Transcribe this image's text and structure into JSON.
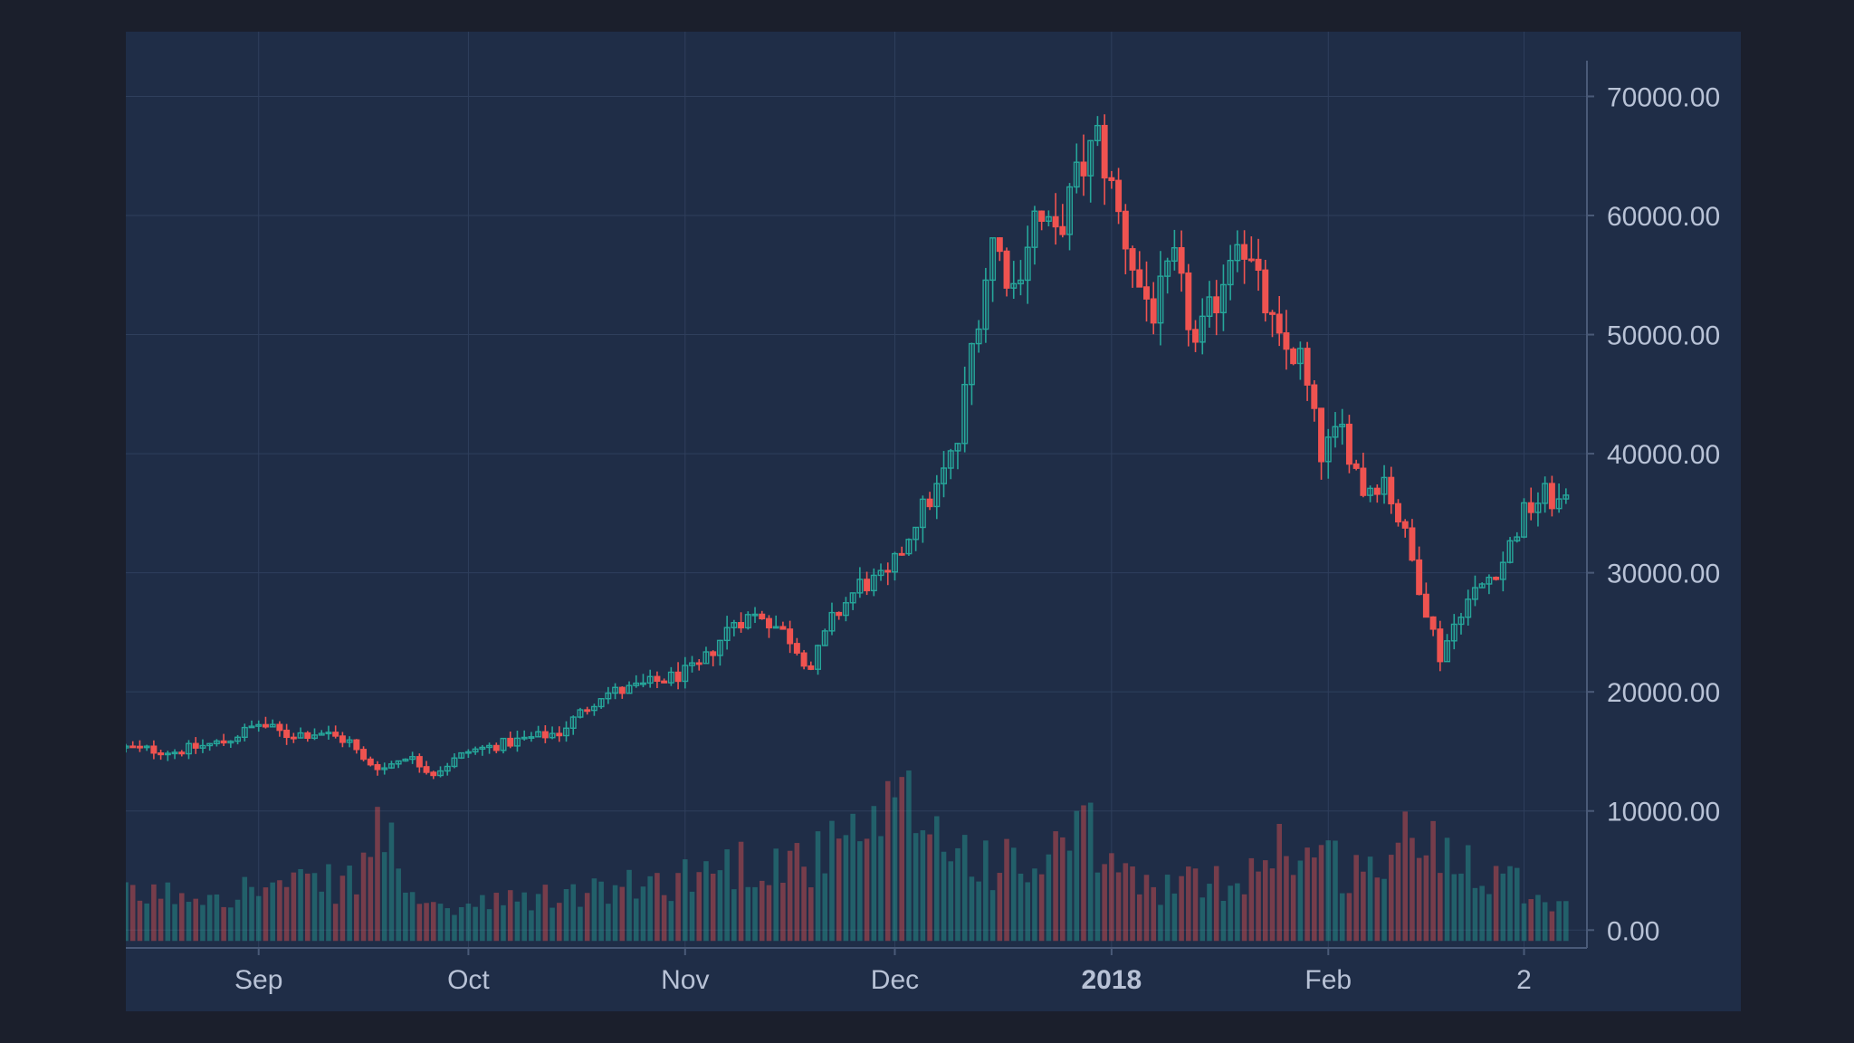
{
  "chart_data": {
    "type": "candlestick",
    "title": "",
    "xlabel": "",
    "ylabel": "",
    "ylim": [
      -1500,
      73000
    ],
    "y_ticks": [
      "70000.00",
      "60000.00",
      "50000.00",
      "40000.00",
      "30000.00",
      "20000.00",
      "10000.00",
      "0.00"
    ],
    "y_tick_values": [
      70000,
      60000,
      50000,
      40000,
      30000,
      20000,
      10000,
      0
    ],
    "x_ticks": [
      {
        "label": "Sep",
        "date": "2017-09-01",
        "bold": false
      },
      {
        "label": "Oct",
        "date": "2017-10-01",
        "bold": false
      },
      {
        "label": "Nov",
        "date": "2017-11-01",
        "bold": false
      },
      {
        "label": "Dec",
        "date": "2017-12-01",
        "bold": false
      },
      {
        "label": "2018",
        "date": "2018-01-01",
        "bold": true
      },
      {
        "label": "Feb",
        "date": "2018-02-01",
        "bold": false
      },
      {
        "label": "2",
        "date": "2018-03-01",
        "bold": false
      }
    ],
    "x_range": [
      "2017-08-13",
      "2018-03-10"
    ],
    "grid": true,
    "legend": "none",
    "colors": {
      "up": "#26a69a",
      "down": "#ef5350",
      "background": "#1f2d47",
      "grid": "#2f3f5c",
      "axis": "#4a5a78",
      "text": "#b8c2d6"
    },
    "close_path": [
      [
        "2017-08-13",
        15300
      ],
      [
        "2017-08-20",
        15000
      ],
      [
        "2017-08-27",
        15800
      ],
      [
        "2017-09-01",
        17300
      ],
      [
        "2017-09-05",
        16400
      ],
      [
        "2017-09-10",
        16600
      ],
      [
        "2017-09-14",
        15800
      ],
      [
        "2017-09-16",
        14200
      ],
      [
        "2017-09-19",
        13600
      ],
      [
        "2017-09-22",
        14700
      ],
      [
        "2017-09-26",
        13200
      ],
      [
        "2017-10-01",
        15000
      ],
      [
        "2017-10-08",
        15900
      ],
      [
        "2017-10-14",
        16600
      ],
      [
        "2017-10-20",
        19800
      ],
      [
        "2017-10-24",
        20200
      ],
      [
        "2017-10-30",
        21200
      ],
      [
        "2017-11-03",
        22000
      ],
      [
        "2017-11-08",
        26000
      ],
      [
        "2017-11-12",
        26500
      ],
      [
        "2017-11-16",
        24500
      ],
      [
        "2017-11-19",
        22000
      ],
      [
        "2017-11-22",
        26000
      ],
      [
        "2017-11-26",
        29000
      ],
      [
        "2017-11-30",
        29500
      ],
      [
        "2017-12-04",
        34500
      ],
      [
        "2017-12-07",
        37000
      ],
      [
        "2017-12-10",
        41000
      ],
      [
        "2017-12-12",
        49000
      ],
      [
        "2017-12-15",
        58000
      ],
      [
        "2017-12-18",
        54000
      ],
      [
        "2017-12-21",
        60000
      ],
      [
        "2017-12-24",
        58000
      ],
      [
        "2017-12-27",
        63000
      ],
      [
        "2017-12-30",
        66500
      ],
      [
        "2018-01-02",
        60000
      ],
      [
        "2018-01-05",
        54000
      ],
      [
        "2018-01-07",
        52000
      ],
      [
        "2018-01-10",
        56000
      ],
      [
        "2018-01-13",
        49000
      ],
      [
        "2018-01-16",
        53000
      ],
      [
        "2018-01-19",
        59000
      ],
      [
        "2018-01-22",
        54000
      ],
      [
        "2018-01-25",
        49000
      ],
      [
        "2018-01-28",
        48000
      ],
      [
        "2018-01-31",
        40000
      ],
      [
        "2018-02-03",
        42000
      ],
      [
        "2018-02-06",
        37000
      ],
      [
        "2018-02-09",
        38000
      ],
      [
        "2018-02-12",
        33000
      ],
      [
        "2018-02-15",
        27000
      ],
      [
        "2018-02-17",
        23000
      ],
      [
        "2018-02-20",
        27000
      ],
      [
        "2018-02-23",
        29000
      ],
      [
        "2018-02-26",
        31000
      ],
      [
        "2018-03-01",
        35000
      ],
      [
        "2018-03-04",
        36500
      ],
      [
        "2018-03-07",
        35500
      ]
    ],
    "volume_peaks": [
      [
        "2017-08-13",
        3500
      ],
      [
        "2017-09-15",
        5000
      ],
      [
        "2017-09-18",
        11000
      ],
      [
        "2017-09-25",
        2000
      ],
      [
        "2017-10-25",
        4500
      ],
      [
        "2017-11-08",
        7000
      ],
      [
        "2017-11-20",
        7500
      ],
      [
        "2017-11-29",
        10500
      ],
      [
        "2017-12-03",
        13000
      ],
      [
        "2017-12-10",
        8500
      ],
      [
        "2017-12-20",
        6000
      ],
      [
        "2017-12-28",
        10000
      ],
      [
        "2018-01-05",
        4500
      ],
      [
        "2018-01-18",
        5000
      ],
      [
        "2018-01-25",
        9000
      ],
      [
        "2018-02-06",
        6000
      ],
      [
        "2018-02-13",
        9500
      ],
      [
        "2018-02-18",
        9000
      ],
      [
        "2018-03-07",
        2500
      ]
    ]
  }
}
